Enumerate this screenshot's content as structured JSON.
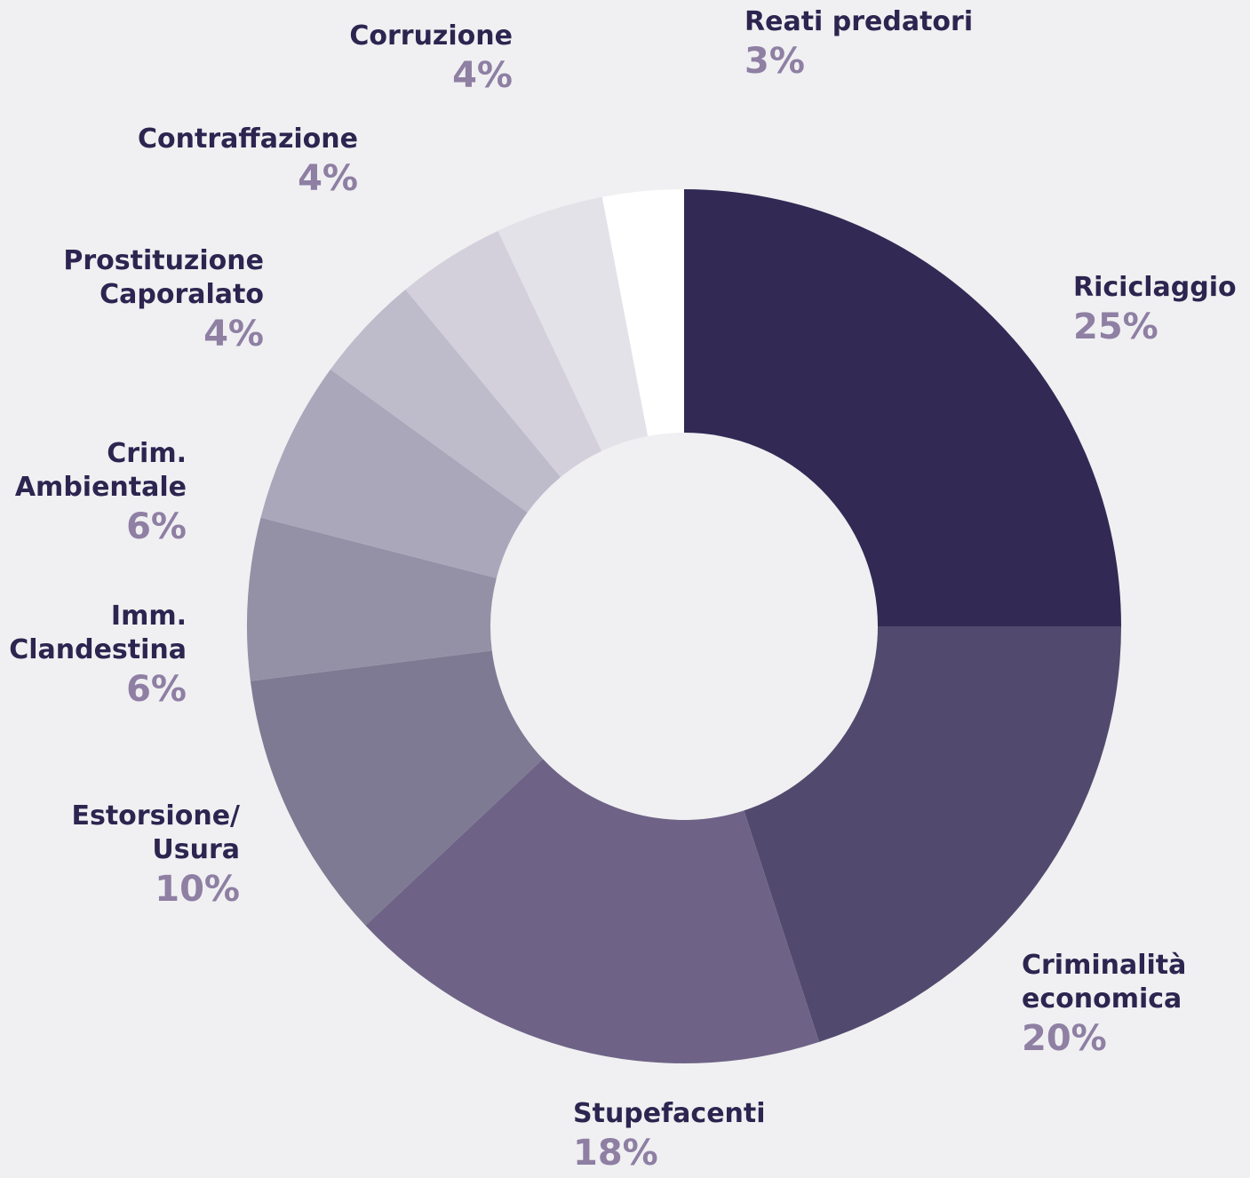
{
  "chart_data": {
    "type": "donut",
    "categories": [
      "Riciclaggio",
      "Criminalità\neconomica",
      "Stupefacenti",
      "Estorsione/\nUsura",
      "Imm.\nClandestina",
      "Crim.\nAmbientale",
      "Prostituzione\nCaporalato",
      "Contraffazione",
      "Corruzione",
      "Reati predatori"
    ],
    "values": [
      25,
      20,
      18,
      10,
      6,
      6,
      4,
      4,
      4,
      3
    ],
    "value_labels": [
      "25%",
      "20%",
      "18%",
      "10%",
      "6%",
      "6%",
      "4%",
      "4%",
      "4%",
      "3%"
    ],
    "colors": [
      "#322a55",
      "#524a6e",
      "#6e6386",
      "#7f7a93",
      "#9490a6",
      "#aba7bb",
      "#bebbcb",
      "#d3d0dc",
      "#e4e2e9",
      "#ffffff"
    ]
  }
}
